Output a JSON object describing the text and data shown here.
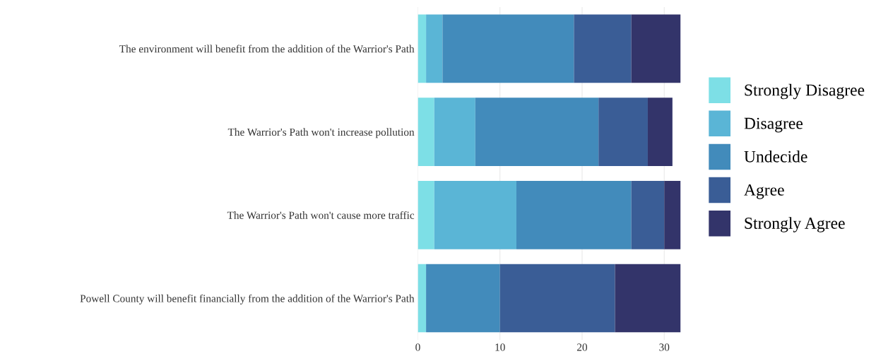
{
  "chart_data": {
    "type": "bar",
    "orientation": "horizontal",
    "stacked": true,
    "categories": [
      "The environment will benefit from the addition of the Warrior's Path",
      "The Warrior's Path won't increase pollution",
      "The Warrior's Path won't cause more traffic",
      "Powell County will benefit financially from the addition of the Warrior's Path"
    ],
    "series": [
      {
        "name": "Strongly Disagree",
        "color": "#7ddfe6",
        "values": [
          1,
          2,
          2,
          1
        ]
      },
      {
        "name": "Disagree",
        "color": "#5ab5d6",
        "values": [
          2,
          5,
          10,
          0
        ]
      },
      {
        "name": "Undecide",
        "color": "#428bbb",
        "values": [
          16,
          15,
          14,
          9
        ]
      },
      {
        "name": "Agree",
        "color": "#3a5d96",
        "values": [
          7,
          6,
          4,
          14
        ]
      },
      {
        "name": "Strongly Agree",
        "color": "#33346a",
        "values": [
          6,
          3,
          2,
          8
        ]
      }
    ],
    "xlim": [
      0,
      32
    ],
    "xticks": [
      0,
      10,
      20,
      30
    ],
    "grid": "x",
    "legend": "right"
  }
}
